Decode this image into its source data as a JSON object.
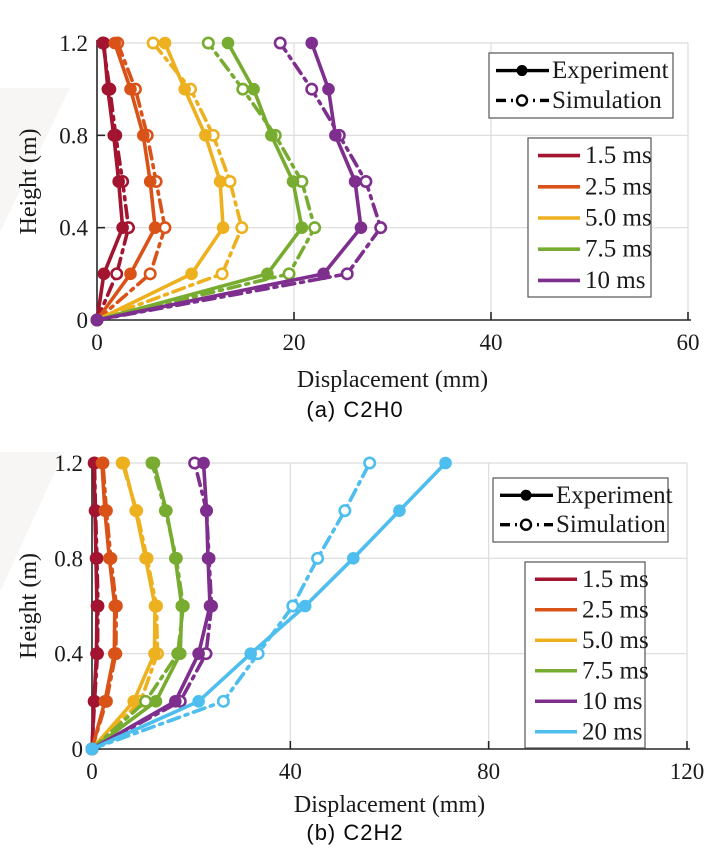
{
  "palette": {
    "background": "#ffffff",
    "axis": "#262626",
    "grid": "#dcdcdc",
    "legend_border": "#555555",
    "legend_sample": "#000000",
    "text": "#1a1a1a"
  },
  "style_legend": [
    {
      "label": "Experiment",
      "line": "solid",
      "marker": "filled-circle"
    },
    {
      "label": "Simulation",
      "line": "dash-dot",
      "marker": "open-circle"
    }
  ],
  "chart_data": [
    {
      "id": "a",
      "type": "line",
      "caption": "(a)  C2H0",
      "xlabel": "Displacement (mm)",
      "ylabel": "Height (m)",
      "xlim": [
        0,
        60
      ],
      "ylim": [
        0,
        1.2
      ],
      "xticks": [
        0,
        20,
        40,
        60
      ],
      "yticks": [
        0,
        0.4,
        0.8,
        1.2
      ],
      "grid": true,
      "heights": [
        0,
        0.2,
        0.4,
        0.6,
        0.8,
        1.0,
        1.2
      ],
      "series": [
        {
          "label": "1.5 ms",
          "color": "#A2142F",
          "experiment": [
            0,
            0.7,
            2.6,
            2.2,
            1.7,
            1.1,
            0.7
          ],
          "simulation": [
            0,
            2.0,
            3.2,
            2.6,
            1.9,
            1.3,
            0.6
          ]
        },
        {
          "label": "2.5 ms",
          "color": "#D95319",
          "experiment": [
            0,
            3.4,
            5.9,
            5.4,
            4.7,
            3.4,
            1.8
          ],
          "simulation": [
            0,
            5.4,
            6.9,
            6.0,
            5.1,
            3.9,
            2.1
          ]
        },
        {
          "label": "5.0 ms",
          "color": "#EDB120",
          "experiment": [
            0,
            9.6,
            12.8,
            12.5,
            11.0,
            8.9,
            6.9
          ],
          "simulation": [
            0,
            12.7,
            14.7,
            13.5,
            11.8,
            9.5,
            5.7
          ]
        },
        {
          "label": "7.5 ms",
          "color": "#77AC30",
          "experiment": [
            0,
            17.3,
            20.8,
            19.9,
            17.7,
            15.9,
            13.3
          ],
          "simulation": [
            0,
            19.5,
            22.1,
            20.8,
            18.1,
            14.8,
            11.3
          ]
        },
        {
          "label": "10 ms",
          "color": "#7E2F8E",
          "experiment": [
            0,
            23.0,
            26.8,
            26.2,
            24.2,
            23.5,
            21.8
          ],
          "simulation": [
            0,
            25.4,
            28.8,
            27.3,
            24.6,
            21.8,
            18.6
          ]
        }
      ]
    },
    {
      "id": "b",
      "type": "line",
      "caption": "(b)  C2H2",
      "xlabel": "Displacement (mm)",
      "ylabel": "Height (m)",
      "xlim": [
        0,
        120
      ],
      "ylim": [
        0,
        1.2
      ],
      "xticks": [
        0,
        40,
        80,
        120
      ],
      "yticks": [
        0,
        0.4,
        0.8,
        1.2
      ],
      "grid": true,
      "heights": [
        0,
        0.2,
        0.4,
        0.6,
        0.8,
        1.0,
        1.2
      ],
      "series": [
        {
          "label": "1.5 ms",
          "color": "#A2142F",
          "experiment": [
            0,
            0.4,
            0.9,
            1.0,
            0.8,
            0.6,
            0.4
          ],
          "simulation": [
            0,
            0.5,
            1.1,
            1.2,
            1.0,
            0.7,
            0.5
          ]
        },
        {
          "label": "2.5 ms",
          "color": "#D95319",
          "experiment": [
            0,
            2.6,
            4.5,
            4.6,
            3.5,
            2.6,
            2.0
          ],
          "simulation": [
            0,
            2.9,
            4.8,
            4.9,
            3.8,
            2.9,
            2.2
          ]
        },
        {
          "label": "5.0 ms",
          "color": "#EDB120",
          "experiment": [
            0,
            8.4,
            12.6,
            12.7,
            10.8,
            8.8,
            6.4
          ],
          "simulation": [
            0,
            9.8,
            13.2,
            13.0,
            11.1,
            9.0,
            6.1
          ]
        },
        {
          "label": "7.5 ms",
          "color": "#77AC30",
          "experiment": [
            0,
            12.9,
            17.8,
            18.1,
            16.8,
            15.0,
            12.5
          ],
          "simulation": [
            0,
            10.8,
            17.3,
            18.4,
            17.0,
            14.8,
            12.1
          ]
        },
        {
          "label": "10 ms",
          "color": "#7E2F8E",
          "experiment": [
            0,
            16.8,
            21.5,
            23.8,
            23.4,
            23.1,
            22.5
          ],
          "simulation": [
            0,
            17.8,
            23.0,
            24.1,
            23.6,
            23.1,
            20.7
          ]
        },
        {
          "label": "20 ms",
          "color": "#4DBEEE",
          "experiment": [
            0,
            21.5,
            32.0,
            43.0,
            52.7,
            62.0,
            71.3
          ],
          "simulation": [
            0,
            26.5,
            33.5,
            40.5,
            45.5,
            51.0,
            56.0
          ]
        }
      ]
    }
  ]
}
